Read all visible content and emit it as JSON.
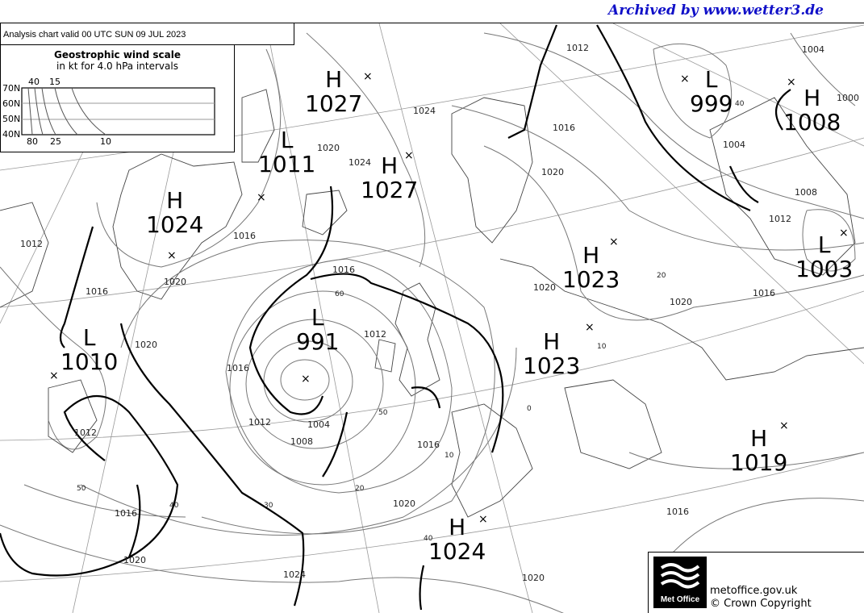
{
  "archive_banner": "Archived by www.wetter3.de",
  "chart_title": "Analysis chart  valid 00 UTC SUN 09  JUL 2023",
  "wind_scale": {
    "title": "Geostrophic wind scale",
    "subtitle": "in kt for 4.0 hPa intervals",
    "latitudes": [
      "70N",
      "60N",
      "50N",
      "40N"
    ],
    "top_labels": [
      "40",
      "15"
    ],
    "bottom_labels": [
      "80",
      "25",
      "10"
    ]
  },
  "pressure_centers": [
    {
      "type": "H",
      "value": "1027"
    },
    {
      "type": "L",
      "value": "1011"
    },
    {
      "type": "H",
      "value": "1027"
    },
    {
      "type": "H",
      "value": "1024"
    },
    {
      "type": "L",
      "value": "1010"
    },
    {
      "type": "L",
      "value": "991"
    },
    {
      "type": "H",
      "value": "1023"
    },
    {
      "type": "H",
      "value": "1023"
    },
    {
      "type": "H",
      "value": "1024"
    },
    {
      "type": "H",
      "value": "1019"
    },
    {
      "type": "L",
      "value": "999"
    },
    {
      "type": "H",
      "value": "1008"
    },
    {
      "type": "L",
      "value": "1003"
    }
  ],
  "isobar_labels": [
    "1012",
    "1016",
    "1020",
    "1024",
    "1020",
    "1024",
    "1016",
    "1020",
    "1016",
    "1012",
    "1020",
    "1016",
    "1016",
    "1012",
    "1012",
    "1004",
    "1008",
    "1016",
    "1020",
    "1016",
    "1020",
    "1024",
    "1012",
    "1020",
    "1020",
    "1016",
    "1012",
    "1008",
    "1004",
    "1004",
    "1000",
    "1016",
    "1020"
  ],
  "latitude_scale_labels": [
    "60",
    "50",
    "20",
    "10",
    "40",
    "30",
    "40",
    "50",
    "10",
    "20",
    "0",
    "40"
  ],
  "footer": {
    "logo_text": "Met Office",
    "website": "metoffice.gov.uk",
    "copyright": "© Crown Copyright"
  }
}
